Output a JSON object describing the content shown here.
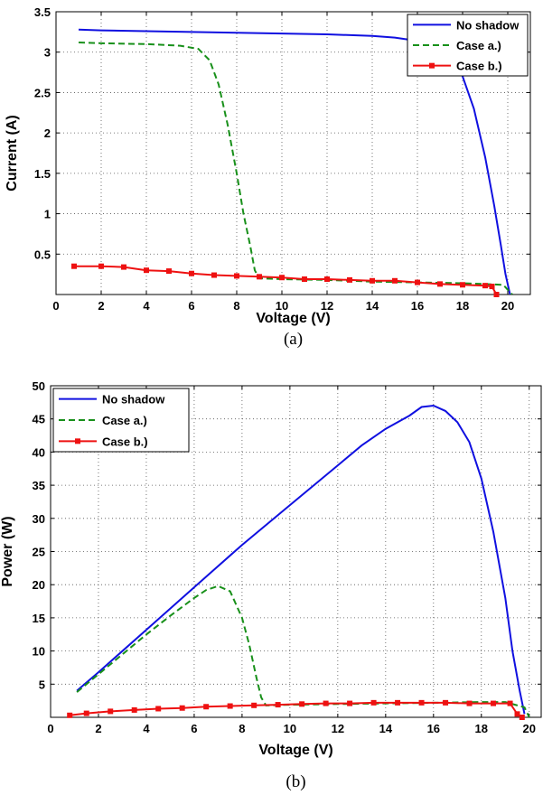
{
  "chart_data": [
    {
      "type": "line",
      "caption": "(a)",
      "xlabel": "Voltage (V)",
      "ylabel": "Current (A)",
      "xlim": [
        0,
        21
      ],
      "ylim": [
        0,
        3.5
      ],
      "xticks": [
        0,
        2,
        4,
        6,
        8,
        10,
        12,
        14,
        16,
        18,
        20
      ],
      "yticks": [
        0.5,
        1,
        1.5,
        2,
        2.5,
        3,
        3.5
      ],
      "grid": true,
      "legend_position": "top-right",
      "series": [
        {
          "name": "No shadow",
          "color": "#1010e0",
          "style": "solid",
          "x": [
            1.0,
            2.0,
            4.0,
            6.0,
            8.0,
            10.0,
            12.0,
            14.0,
            15.0,
            16.0,
            17.0,
            17.5,
            18.0,
            18.5,
            19.0,
            19.4,
            19.7,
            19.9,
            20.1
          ],
          "y": [
            3.28,
            3.27,
            3.26,
            3.25,
            3.24,
            3.23,
            3.22,
            3.2,
            3.18,
            3.14,
            3.05,
            2.94,
            2.7,
            2.3,
            1.7,
            1.1,
            0.6,
            0.25,
            0.0
          ]
        },
        {
          "name": "Case a.)",
          "color": "#18901a",
          "style": "dashed",
          "x": [
            1.0,
            2.0,
            4.0,
            5.5,
            6.3,
            6.8,
            7.2,
            7.6,
            8.0,
            8.3,
            8.6,
            8.8,
            9.0,
            10.0,
            12.0,
            14.0,
            16.0,
            18.0,
            19.0,
            19.8,
            20.2
          ],
          "y": [
            3.12,
            3.11,
            3.1,
            3.08,
            3.04,
            2.9,
            2.6,
            2.1,
            1.5,
            1.0,
            0.6,
            0.3,
            0.2,
            0.19,
            0.18,
            0.16,
            0.15,
            0.14,
            0.13,
            0.12,
            0.0
          ]
        },
        {
          "name": "Case b.)",
          "color": "#ee1111",
          "style": "solid-marker",
          "x": [
            0.8,
            2.0,
            3.0,
            4.0,
            5.0,
            6.0,
            7.0,
            8.0,
            9.0,
            10.0,
            11.0,
            12.0,
            13.0,
            14.0,
            15.0,
            16.0,
            17.0,
            18.0,
            19.0,
            19.3,
            19.5
          ],
          "y": [
            0.35,
            0.35,
            0.34,
            0.3,
            0.29,
            0.26,
            0.24,
            0.23,
            0.22,
            0.21,
            0.19,
            0.19,
            0.18,
            0.17,
            0.17,
            0.15,
            0.13,
            0.12,
            0.11,
            0.1,
            0.0
          ]
        }
      ]
    },
    {
      "type": "line",
      "caption": "(b)",
      "xlabel": "Voltage (V)",
      "ylabel": "Power (W)",
      "xlim": [
        0,
        20.5
      ],
      "ylim": [
        0,
        50
      ],
      "xticks": [
        0,
        2,
        4,
        6,
        8,
        10,
        12,
        14,
        16,
        18,
        20
      ],
      "yticks": [
        5,
        10,
        15,
        20,
        25,
        30,
        35,
        40,
        45,
        50
      ],
      "grid": true,
      "legend_position": "top-left",
      "series": [
        {
          "name": "No shadow",
          "color": "#1010e0",
          "style": "solid",
          "x": [
            1.1,
            2.0,
            4.0,
            6.0,
            8.0,
            10.0,
            12.0,
            13.0,
            14.0,
            15.0,
            15.5,
            16.0,
            16.5,
            17.0,
            17.5,
            18.0,
            18.5,
            19.0,
            19.3,
            19.6,
            19.8
          ],
          "y": [
            4.0,
            6.8,
            13.2,
            19.6,
            26.0,
            32.0,
            38.0,
            41.0,
            43.5,
            45.5,
            46.8,
            47.0,
            46.2,
            44.5,
            41.5,
            36.0,
            28.0,
            18.0,
            10.0,
            4.0,
            0.5
          ]
        },
        {
          "name": "Case a.)",
          "color": "#18901a",
          "style": "dashed",
          "x": [
            1.1,
            2.0,
            3.0,
            4.0,
            5.0,
            6.0,
            6.5,
            7.0,
            7.5,
            8.0,
            8.3,
            8.6,
            8.8,
            9.0,
            10.0,
            12.0,
            14.0,
            16.0,
            18.0,
            19.0,
            19.8,
            20.0
          ],
          "y": [
            3.8,
            6.5,
            9.5,
            12.5,
            15.3,
            18.0,
            19.2,
            19.8,
            19.0,
            15.0,
            11.0,
            6.0,
            3.0,
            1.8,
            1.9,
            2.0,
            2.1,
            2.2,
            2.3,
            2.3,
            1.5,
            0.0
          ]
        },
        {
          "name": "Case b.)",
          "color": "#ee1111",
          "style": "solid-marker",
          "x": [
            0.8,
            1.5,
            2.5,
            3.5,
            4.5,
            5.5,
            6.5,
            7.5,
            8.5,
            9.5,
            10.5,
            11.5,
            12.5,
            13.5,
            14.5,
            15.5,
            16.5,
            17.5,
            18.5,
            19.2,
            19.5,
            19.7
          ],
          "y": [
            0.3,
            0.6,
            0.9,
            1.1,
            1.3,
            1.4,
            1.6,
            1.7,
            1.8,
            1.9,
            2.0,
            2.1,
            2.1,
            2.2,
            2.2,
            2.2,
            2.2,
            2.1,
            2.1,
            2.1,
            0.5,
            0.0
          ]
        }
      ]
    }
  ]
}
